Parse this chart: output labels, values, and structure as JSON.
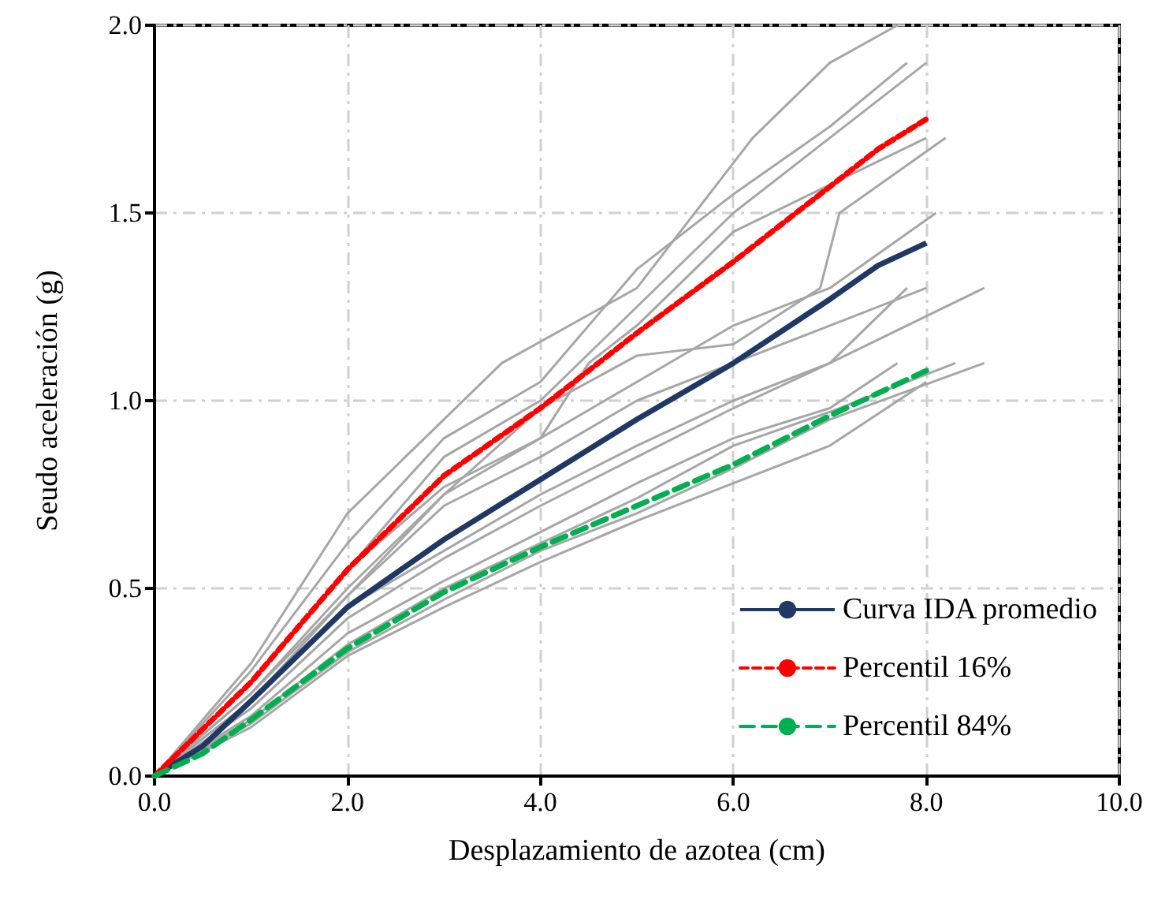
{
  "chart_data": {
    "type": "line",
    "xlabel": "Desplazamiento de azotea (cm)",
    "ylabel": "Seudo aceleración (g)",
    "xlim": [
      0,
      10
    ],
    "xticks": [
      {
        "value": 0,
        "label": "0.0"
      },
      {
        "value": 2,
        "label": "2.0"
      },
      {
        "value": 4,
        "label": "4.0"
      },
      {
        "value": 6,
        "label": "6.0"
      },
      {
        "value": 8,
        "label": "8.0"
      },
      {
        "value": 10,
        "label": "10.0"
      }
    ],
    "ylim": [
      0,
      2
    ],
    "yticks": [
      {
        "value": 0,
        "label": "0.0"
      },
      {
        "value": 0.5,
        "label": "0.5"
      },
      {
        "value": 1,
        "label": "1.0"
      },
      {
        "value": 1.5,
        "label": "1.5"
      },
      {
        "value": 2,
        "label": "2.0"
      }
    ],
    "grid": true,
    "legend": "bottom right",
    "marker": "none",
    "series": [
      {
        "color": "#a6a6a6",
        "line_style": "solid",
        "x": [
          0,
          1,
          2,
          3.6,
          5,
          6.2,
          7,
          7.7
        ],
        "values": [
          0,
          0.3,
          0.7,
          1.1,
          1.3,
          1.7,
          1.9,
          2.0
        ]
      },
      {
        "color": "#a6a6a6",
        "line_style": "solid",
        "x": [
          0,
          1,
          2,
          3,
          4,
          5,
          6,
          7,
          7.8
        ],
        "values": [
          0,
          0.28,
          0.62,
          0.9,
          1.05,
          1.35,
          1.55,
          1.73,
          1.9
        ]
      },
      {
        "color": "#a6a6a6",
        "line_style": "solid",
        "x": [
          0,
          1,
          2,
          3,
          4,
          5,
          6,
          8
        ],
        "values": [
          0,
          0.25,
          0.55,
          0.85,
          1.0,
          1.25,
          1.5,
          1.9
        ]
      },
      {
        "color": "#a6a6a6",
        "line_style": "solid",
        "x": [
          0,
          1,
          2,
          3,
          4,
          4.5,
          5,
          6,
          8
        ],
        "values": [
          0,
          0.25,
          0.55,
          0.77,
          0.9,
          1.1,
          1.2,
          1.45,
          1.7
        ]
      },
      {
        "color": "#a6a6a6",
        "line_style": "solid",
        "x": [
          0,
          1,
          2,
          3,
          4,
          5,
          6,
          6.9,
          7.1,
          8.2
        ],
        "values": [
          0,
          0.22,
          0.5,
          0.75,
          0.98,
          1.12,
          1.15,
          1.3,
          1.5,
          1.7
        ]
      },
      {
        "color": "#a6a6a6",
        "line_style": "solid",
        "x": [
          0,
          1,
          2,
          3,
          4,
          5,
          6,
          7,
          8.1
        ],
        "values": [
          0,
          0.22,
          0.48,
          0.75,
          0.9,
          1.05,
          1.2,
          1.3,
          1.5
        ]
      },
      {
        "color": "#a6a6a6",
        "line_style": "solid",
        "x": [
          0,
          1,
          2,
          3,
          4,
          5,
          6,
          7,
          8
        ],
        "values": [
          0,
          0.2,
          0.48,
          0.72,
          0.85,
          1.0,
          1.1,
          1.2,
          1.3
        ]
      },
      {
        "color": "#a6a6a6",
        "line_style": "solid",
        "x": [
          0,
          1,
          2,
          3,
          4,
          5,
          6,
          7,
          7.8
        ],
        "values": [
          0,
          0.2,
          0.45,
          0.6,
          0.75,
          0.88,
          1.0,
          1.1,
          1.3
        ]
      },
      {
        "color": "#a6a6a6",
        "line_style": "solid",
        "x": [
          0,
          1,
          2,
          3,
          4,
          5,
          6,
          7,
          8.6
        ],
        "values": [
          0,
          0.18,
          0.42,
          0.58,
          0.72,
          0.85,
          0.98,
          1.1,
          1.3
        ]
      },
      {
        "color": "#a6a6a6",
        "line_style": "solid",
        "x": [
          0,
          1,
          2,
          3,
          4,
          5,
          6,
          7,
          7.7
        ],
        "values": [
          0,
          0.16,
          0.38,
          0.52,
          0.65,
          0.78,
          0.9,
          0.98,
          1.1
        ]
      },
      {
        "color": "#a6a6a6",
        "line_style": "solid",
        "x": [
          0,
          1,
          2,
          3,
          4,
          5,
          6,
          7,
          8.3
        ],
        "values": [
          0,
          0.15,
          0.35,
          0.5,
          0.62,
          0.74,
          0.88,
          0.97,
          1.1
        ]
      },
      {
        "color": "#a6a6a6",
        "line_style": "solid",
        "x": [
          0,
          1,
          2,
          3,
          4,
          5,
          6,
          7,
          8.6
        ],
        "values": [
          0,
          0.14,
          0.33,
          0.47,
          0.6,
          0.7,
          0.82,
          0.95,
          1.1
        ]
      },
      {
        "color": "#a6a6a6",
        "line_style": "solid",
        "x": [
          0,
          1,
          2,
          3,
          4,
          5,
          6,
          7,
          8
        ],
        "values": [
          0,
          0.13,
          0.32,
          0.45,
          0.57,
          0.68,
          0.78,
          0.88,
          1.05
        ]
      },
      {
        "name": "Curva IDA promedio",
        "color": "#1f3864",
        "line_style": "solid",
        "x": [
          0,
          0.5,
          1,
          2,
          3,
          4,
          5,
          6,
          7,
          7.5,
          8
        ],
        "values": [
          0,
          0.08,
          0.2,
          0.45,
          0.63,
          0.79,
          0.95,
          1.1,
          1.27,
          1.36,
          1.42
        ]
      },
      {
        "name": "Percentil 16%",
        "color": "#ff0000",
        "line_style": "dotted",
        "x": [
          0,
          1,
          2,
          3,
          4,
          4.5,
          5,
          6,
          7,
          7.5,
          8
        ],
        "values": [
          0,
          0.25,
          0.55,
          0.8,
          0.98,
          1.08,
          1.18,
          1.37,
          1.57,
          1.67,
          1.75
        ]
      },
      {
        "name": "Percentil 84%",
        "color": "#00b050",
        "line_style": "dashed",
        "x": [
          0,
          0.5,
          1,
          2,
          3,
          4,
          5,
          6,
          7,
          7.5,
          8
        ],
        "values": [
          0,
          0.06,
          0.15,
          0.34,
          0.49,
          0.61,
          0.72,
          0.83,
          0.96,
          1.02,
          1.08
        ]
      }
    ]
  }
}
